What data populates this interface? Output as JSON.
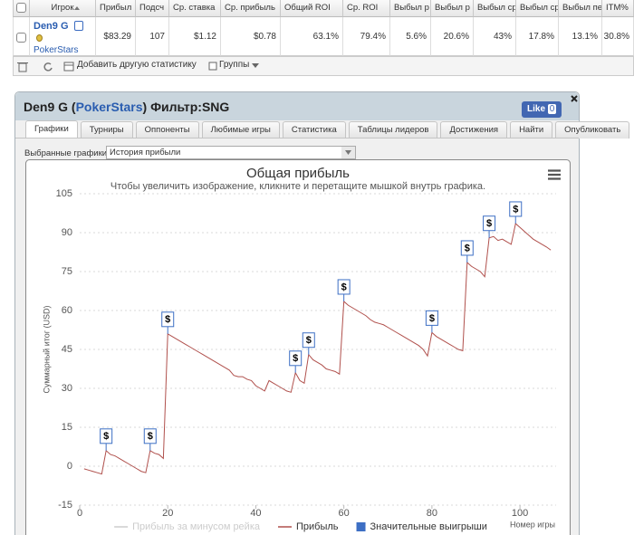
{
  "table": {
    "columns": [
      "Игрок",
      "Прибыл",
      "Подсч",
      "Ср. ставка",
      "Ср. прибыль",
      "Общий ROI",
      "Ср. ROI",
      "Выбыл р",
      "Выбыл р",
      "Выбыл ср",
      "Выбыл ср",
      "Выбыл пе",
      "ITM%"
    ],
    "rows": [
      {
        "player": "Den9 G",
        "site": "PokerStars",
        "cells": [
          "$83.29",
          "107",
          "$1.12",
          "$0.78",
          "63.1%",
          "79.4%",
          "5.6%",
          "20.6%",
          "43%",
          "17.8%",
          "13.1%",
          "30.8%"
        ]
      }
    ]
  },
  "toolbar": {
    "add_stat": "Добавить другую статистику",
    "groups": "Группы"
  },
  "panel": {
    "title": [
      "Den9 G (",
      "PokerStars",
      ") Фильтр:SNG"
    ],
    "like": "Like",
    "like_count": 0,
    "tabs": [
      "Графики",
      "Турниры",
      "Оппоненты",
      "Любимые игры",
      "Статистика",
      "Таблицы лидеров",
      "Достижения",
      "Найти",
      "Опубликовать"
    ],
    "active_tab": 0,
    "chart_selector": {
      "label": "Выбранные графики:",
      "value": "История прибыли"
    }
  },
  "chart_data": {
    "type": "line",
    "title": "Общая прибыль",
    "subtitle": "Чтобы увеличить изображение, кликните и перетащите мышкой внутрь графика.",
    "ylabel": "Суммарный итог (USD)",
    "xlabel": "Номер игры",
    "xlim": [
      0,
      108
    ],
    "ylim": [
      -15,
      105
    ],
    "xticks": [
      0,
      20,
      40,
      60,
      80,
      100
    ],
    "yticks": [
      -15,
      0,
      15,
      30,
      45,
      60,
      75,
      90,
      105
    ],
    "grid": true,
    "flag_label": "$",
    "series": [
      {
        "name": "Прибыль за минусом рейка",
        "color": "#cccccc",
        "visible": false
      },
      {
        "name": "Прибыль",
        "color": "#b0504c",
        "visible": true,
        "x": [
          1,
          2,
          3,
          4,
          5,
          6,
          7,
          8,
          9,
          10,
          11,
          12,
          13,
          14,
          15,
          16,
          17,
          18,
          19,
          20,
          21,
          22,
          23,
          24,
          25,
          26,
          27,
          28,
          29,
          30,
          31,
          32,
          33,
          34,
          35,
          36,
          37,
          38,
          39,
          40,
          41,
          42,
          43,
          44,
          45,
          46,
          47,
          48,
          49,
          50,
          51,
          52,
          53,
          54,
          55,
          56,
          57,
          58,
          59,
          60,
          61,
          62,
          63,
          64,
          65,
          66,
          67,
          68,
          69,
          70,
          71,
          72,
          73,
          74,
          75,
          76,
          77,
          78,
          79,
          80,
          81,
          82,
          83,
          84,
          85,
          86,
          87,
          88,
          89,
          90,
          91,
          92,
          93,
          94,
          95,
          96,
          97,
          98,
          99,
          100,
          101,
          102,
          103,
          104,
          105,
          106,
          107
        ],
        "values": [
          -1,
          -1.5,
          -2,
          -2.5,
          -3,
          6,
          4.5,
          4,
          3,
          2,
          1,
          0,
          -1,
          -2,
          -2.5,
          6,
          5,
          4.5,
          3,
          51,
          50,
          49,
          48,
          47,
          46,
          45,
          44,
          43,
          42,
          41,
          40,
          39,
          38,
          37,
          35,
          34.5,
          34.5,
          33.5,
          33,
          31,
          30,
          29,
          33,
          32,
          31,
          30,
          29,
          28.5,
          36,
          33,
          32,
          43,
          41,
          40,
          39,
          37.5,
          37,
          36.5,
          35.5,
          63.5,
          62,
          61,
          60,
          59,
          58,
          56.5,
          55.5,
          55,
          54.5,
          53.5,
          52.5,
          51.5,
          50.5,
          49.5,
          48.5,
          47.5,
          46.5,
          45,
          42.5,
          51.5,
          50,
          49,
          48,
          47,
          46,
          45,
          44.5,
          78.5,
          77,
          76,
          75,
          73,
          88,
          88.5,
          87,
          87.5,
          86.5,
          85.5,
          93.5,
          92,
          90.5,
          89,
          87.5,
          86.5,
          85.5,
          84.5,
          83.29
        ]
      },
      {
        "name": "Значительные выигрыши",
        "color": "#3d6fc4",
        "visible": true,
        "marker": "flag",
        "x": [
          6,
          16,
          20,
          49,
          52,
          60,
          80,
          88,
          93,
          99
        ],
        "values": [
          6,
          6,
          51,
          36,
          43,
          63.5,
          51.5,
          78.5,
          88,
          93.5
        ]
      }
    ]
  }
}
